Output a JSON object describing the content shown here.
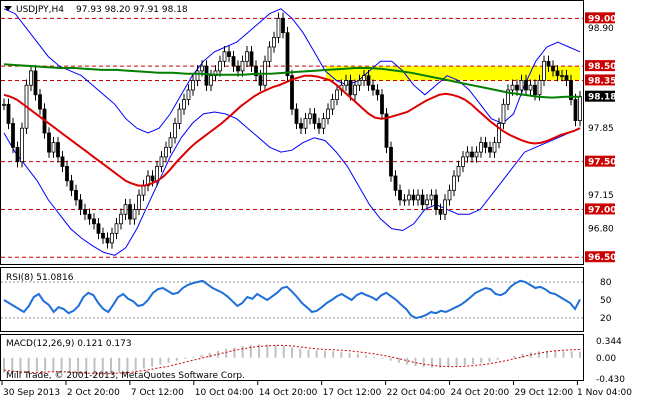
{
  "chart_data": [
    {
      "type": "candlestick",
      "symbol_label": "USDJPY,H4",
      "ohlc_readout": "97.93 98.20 97.91 98.18",
      "ylim": [
        96.45,
        99.15
      ],
      "y_ticks": [
        "98.90",
        "98.50",
        "98.35",
        "98.18",
        "97.85",
        "97.50",
        "97.15",
        "97.00",
        "96.80",
        "96.50",
        "99.00"
      ],
      "y_tick_values": [
        98.9,
        98.5,
        98.35,
        98.18,
        97.85,
        97.5,
        97.15,
        97.0,
        96.8,
        96.5,
        99.0
      ],
      "horizontal_levels": [
        {
          "value": 99.0,
          "label": "99.00",
          "color": "#cc0000"
        },
        {
          "value": 98.5,
          "label": "98.50",
          "color": "#cc0000"
        },
        {
          "value": 98.35,
          "label": "98.35",
          "color": "#cc0000"
        },
        {
          "value": 97.5,
          "label": "97.50",
          "color": "#cc0000"
        },
        {
          "value": 97.0,
          "label": "97.00",
          "color": "#cc0000"
        },
        {
          "value": 96.5,
          "label": "96.50",
          "color": "#cc0000"
        }
      ],
      "current_price": {
        "value": 98.18,
        "label": "98.18"
      },
      "zone": {
        "from": 98.35,
        "to": 98.5,
        "color": "#ffff00"
      },
      "colors": {
        "candle": "#000000",
        "ma_fast": "#dd0000",
        "ma_slow": "#008000",
        "bands": "#0000ff",
        "levels": "#cc0000"
      },
      "close": [
        98.1,
        97.9,
        97.65,
        97.5,
        97.85,
        98.3,
        98.45,
        98.2,
        98.05,
        97.8,
        97.6,
        97.7,
        97.55,
        97.45,
        97.3,
        97.2,
        97.1,
        97.0,
        96.95,
        96.9,
        96.85,
        96.75,
        96.7,
        96.65,
        96.75,
        96.85,
        96.95,
        97.05,
        96.9,
        97.0,
        97.15,
        97.25,
        97.35,
        97.3,
        97.45,
        97.55,
        97.65,
        97.75,
        97.9,
        98.05,
        98.15,
        98.25,
        98.35,
        98.45,
        98.5,
        98.3,
        98.4,
        98.45,
        98.55,
        98.65,
        98.6,
        98.5,
        98.45,
        98.55,
        98.65,
        98.5,
        98.4,
        98.3,
        98.55,
        98.7,
        98.8,
        99.0,
        98.85,
        98.4,
        98.05,
        97.9,
        97.85,
        97.95,
        98.0,
        97.9,
        97.85,
        97.95,
        98.05,
        98.15,
        98.25,
        98.3,
        98.35,
        98.2,
        98.3,
        98.35,
        98.4,
        98.3,
        98.25,
        98.2,
        98.0,
        97.65,
        97.35,
        97.2,
        97.1,
        97.1,
        97.15,
        97.1,
        97.15,
        97.05,
        97.1,
        97.15,
        97.0,
        96.95,
        97.1,
        97.2,
        97.35,
        97.45,
        97.55,
        97.6,
        97.55,
        97.6,
        97.7,
        97.65,
        97.6,
        97.7,
        97.9,
        98.1,
        98.25,
        98.3,
        98.25,
        98.35,
        98.25,
        98.3,
        98.2,
        98.35,
        98.55,
        98.5,
        98.45,
        98.4,
        98.4,
        98.35,
        98.15,
        97.93,
        98.18
      ],
      "ma_fast": [
        98.2,
        98.18,
        98.15,
        98.1,
        98.05,
        98.0,
        97.95,
        97.9,
        97.85,
        97.8,
        97.75,
        97.7,
        97.65,
        97.6,
        97.55,
        97.5,
        97.45,
        97.4,
        97.35,
        97.3,
        97.27,
        97.25,
        97.25,
        97.27,
        97.3,
        97.35,
        97.42,
        97.5,
        97.57,
        97.64,
        97.7,
        97.75,
        97.8,
        97.85,
        97.9,
        97.96,
        98.02,
        98.08,
        98.13,
        98.18,
        98.22,
        98.25,
        98.28,
        98.3,
        98.33,
        98.36,
        98.38,
        98.4,
        98.4,
        98.39,
        98.37,
        98.35,
        98.3,
        98.24,
        98.18,
        98.12,
        98.06,
        98.0,
        97.96,
        97.95,
        97.96,
        97.98,
        98.0,
        98.02,
        98.06,
        98.1,
        98.14,
        98.17,
        98.2,
        98.21,
        98.2,
        98.18,
        98.15,
        98.1,
        98.04,
        97.98,
        97.92,
        97.87,
        97.82,
        97.78,
        97.75,
        97.72,
        97.7,
        97.69,
        97.7,
        97.72,
        97.75,
        97.78,
        97.8,
        97.82,
        97.85
      ],
      "ma_slow": [
        98.52,
        98.51,
        98.5,
        98.49,
        98.48,
        98.48,
        98.47,
        98.46,
        98.46,
        98.45,
        98.44,
        98.43,
        98.43,
        98.42,
        98.42,
        98.41,
        98.41,
        98.41,
        98.42,
        98.42,
        98.43,
        98.44,
        98.45,
        98.46,
        98.47,
        98.48,
        98.48,
        98.47,
        98.45,
        98.43,
        98.4,
        98.37,
        98.34,
        98.31,
        98.28,
        98.25,
        98.22,
        98.2,
        98.18,
        98.17,
        98.18,
        98.18
      ],
      "band_upper": [
        99.1,
        99.05,
        98.9,
        98.75,
        98.6,
        98.5,
        98.45,
        98.4,
        98.3,
        98.2,
        98.1,
        97.95,
        97.85,
        97.8,
        97.85,
        98.0,
        98.2,
        98.4,
        98.55,
        98.65,
        98.7,
        98.75,
        98.85,
        98.95,
        99.05,
        99.1,
        99.0,
        98.85,
        98.65,
        98.45,
        98.35,
        98.3,
        98.35,
        98.45,
        98.55,
        98.55,
        98.45,
        98.3,
        98.2,
        98.3,
        98.4,
        98.35,
        98.25,
        98.1,
        97.95,
        97.9,
        98.0,
        98.3,
        98.55,
        98.7,
        98.75,
        98.7,
        98.65
      ],
      "band_lower": [
        97.8,
        97.6,
        97.45,
        97.3,
        97.1,
        96.95,
        96.8,
        96.7,
        96.62,
        96.55,
        96.52,
        96.6,
        96.8,
        97.05,
        97.3,
        97.55,
        97.75,
        97.9,
        98.0,
        98.02,
        98.0,
        97.95,
        97.85,
        97.75,
        97.65,
        97.6,
        97.62,
        97.7,
        97.75,
        97.72,
        97.6,
        97.45,
        97.25,
        97.05,
        96.9,
        96.8,
        96.78,
        96.85,
        97.0,
        97.05,
        97.0,
        96.95,
        96.95,
        97.0,
        97.15,
        97.3,
        97.45,
        97.6,
        97.65,
        97.7,
        97.75,
        97.8,
        97.85
      ],
      "x_labels": [
        "30 Sep 2013",
        "2 Oct 20:00",
        "7 Oct 12:00",
        "10 Oct 04:00",
        "14 Oct 20:00",
        "17 Oct 12:00",
        "22 Oct 04:00",
        "24 Oct 20:00",
        "29 Oct 12:00",
        "1 Nov 04:00"
      ]
    },
    {
      "type": "line",
      "label": "RSI(8) 51.0816",
      "ylim": [
        0,
        100
      ],
      "y_ticks": [
        "80",
        "50",
        "20"
      ],
      "y_tick_values": [
        80,
        50,
        20
      ],
      "levels": [
        80,
        20
      ],
      "color": "#1e6fd9",
      "values": [
        50,
        45,
        40,
        35,
        30,
        40,
        55,
        60,
        48,
        42,
        30,
        38,
        35,
        28,
        32,
        40,
        55,
        62,
        58,
        45,
        35,
        30,
        42,
        55,
        60,
        52,
        48,
        40,
        42,
        50,
        62,
        68,
        70,
        65,
        60,
        62,
        70,
        75,
        78,
        80,
        82,
        76,
        70,
        66,
        62,
        56,
        48,
        40,
        45,
        55,
        52,
        60,
        55,
        50,
        56,
        62,
        70,
        72,
        64,
        55,
        45,
        38,
        30,
        32,
        38,
        45,
        50,
        56,
        60,
        55,
        50,
        58,
        62,
        58,
        55,
        50,
        58,
        62,
        56,
        50,
        42,
        35,
        24,
        20,
        22,
        25,
        30,
        28,
        32,
        30,
        34,
        38,
        42,
        48,
        55,
        62,
        66,
        70,
        68,
        60,
        58,
        62,
        72,
        78,
        82,
        80,
        75,
        70,
        72,
        68,
        62,
        60,
        55,
        50,
        45,
        35,
        51
      ]
    },
    {
      "type": "bar",
      "label": "MACD(12,26,9) 0.121 0.173",
      "ylim": [
        -0.43,
        0.42
      ],
      "y_ticks": [
        "0.344",
        "0.00",
        "-0.430"
      ],
      "y_tick_values": [
        0.344,
        0.0,
        -0.43
      ],
      "colors": {
        "histogram": "#c0c0c0",
        "signal": "#cc0000"
      },
      "histogram": [
        -0.3,
        -0.32,
        -0.33,
        -0.31,
        -0.28,
        -0.26,
        -0.27,
        -0.29,
        -0.31,
        -0.32,
        -0.33,
        -0.34,
        -0.34,
        -0.33,
        -0.31,
        -0.29,
        -0.26,
        -0.22,
        -0.18,
        -0.14,
        -0.1,
        -0.06,
        -0.02,
        0.02,
        0.06,
        0.1,
        0.14,
        0.18,
        0.21,
        0.24,
        0.26,
        0.27,
        0.27,
        0.26,
        0.24,
        0.21,
        0.18,
        0.16,
        0.15,
        0.14,
        0.13,
        0.12,
        0.1,
        0.08,
        0.05,
        0.02,
        -0.02,
        -0.06,
        -0.1,
        -0.14,
        -0.17,
        -0.19,
        -0.2,
        -0.2,
        -0.19,
        -0.17,
        -0.15,
        -0.13,
        -0.11,
        -0.08,
        -0.04,
        0.0,
        0.04,
        0.08,
        0.11,
        0.13,
        0.14,
        0.14,
        0.13,
        0.13,
        0.12
      ],
      "signal": [
        -0.25,
        -0.27,
        -0.29,
        -0.3,
        -0.3,
        -0.29,
        -0.28,
        -0.28,
        -0.29,
        -0.3,
        -0.31,
        -0.32,
        -0.32,
        -0.32,
        -0.31,
        -0.3,
        -0.28,
        -0.26,
        -0.23,
        -0.2,
        -0.17,
        -0.13,
        -0.09,
        -0.05,
        -0.01,
        0.03,
        0.07,
        0.11,
        0.15,
        0.18,
        0.21,
        0.23,
        0.24,
        0.25,
        0.25,
        0.24,
        0.22,
        0.2,
        0.18,
        0.17,
        0.16,
        0.15,
        0.14,
        0.12,
        0.1,
        0.08,
        0.05,
        0.02,
        -0.02,
        -0.06,
        -0.1,
        -0.13,
        -0.15,
        -0.17,
        -0.18,
        -0.18,
        -0.17,
        -0.16,
        -0.14,
        -0.12,
        -0.09,
        -0.06,
        -0.02,
        0.02,
        0.06,
        0.09,
        0.12,
        0.14,
        0.15,
        0.16,
        0.17
      ]
    }
  ],
  "copyright": "Mill Trade, © 2001-2013, MetaQuotes Software Corp."
}
